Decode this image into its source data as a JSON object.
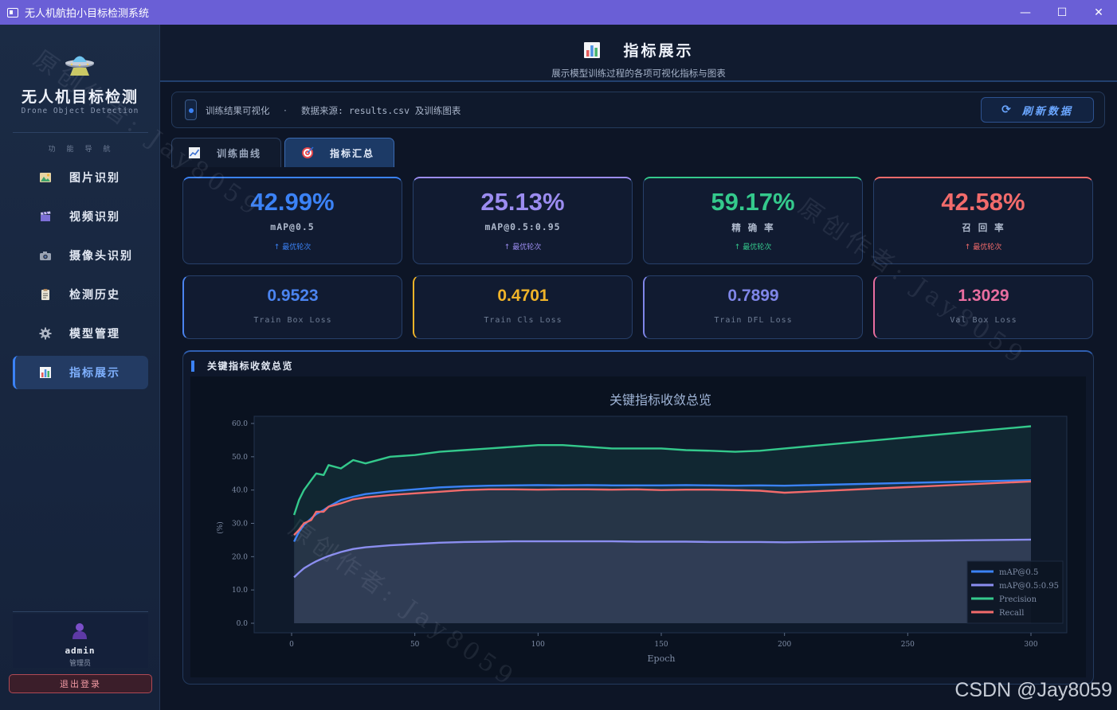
{
  "window": {
    "title": "无人机航拍小目标检测系统",
    "minimize": "—",
    "maximize": "☐",
    "close": "✕"
  },
  "sidebar": {
    "brand_title": "无人机目标检测",
    "brand_subtitle": "Drone Object Detection",
    "nav_heading": "功能导航",
    "items": [
      {
        "label": "图片识别",
        "icon": "image-icon"
      },
      {
        "label": "视频识别",
        "icon": "clapper-icon"
      },
      {
        "label": "摄像头识别",
        "icon": "camera-icon"
      },
      {
        "label": "检测历史",
        "icon": "clipboard-icon"
      },
      {
        "label": "模型管理",
        "icon": "gear-icon"
      },
      {
        "label": "指标展示",
        "icon": "bar-chart-icon",
        "active": true
      }
    ],
    "user": {
      "name": "admin",
      "role": "管理员"
    },
    "logout_label": "退出登录"
  },
  "header": {
    "title": "指标展示",
    "subtitle": "展示模型训练过程的各项可视化指标与图表"
  },
  "info_bar": {
    "label": "训练结果可视化",
    "separator": "·",
    "source": "数据来源: results.csv 及训练图表",
    "refresh_label": "刷新数据",
    "refresh_icon": "⟳"
  },
  "tabs": [
    {
      "label": "训练曲线",
      "icon": "line-chart-icon"
    },
    {
      "label": "指标汇总",
      "icon": "target-icon",
      "active": true
    }
  ],
  "metrics": [
    {
      "value": "42.99%",
      "label": "mAP@0.5",
      "note": "↑ 最优轮次",
      "color": "#3b82f6"
    },
    {
      "value": "25.13%",
      "label": "mAP@0.5:0.95",
      "note": "↑ 最优轮次",
      "color": "#9b8cf0"
    },
    {
      "value": "59.17%",
      "label": "精 确 率",
      "note": "↑ 最优轮次",
      "color": "#34c98c"
    },
    {
      "value": "42.58%",
      "label": "召 回 率",
      "note": "↑ 最优轮次",
      "color": "#f26b6b"
    }
  ],
  "losses": [
    {
      "value": "0.9523",
      "label": "Train Box Loss",
      "color": "#4b84f0"
    },
    {
      "value": "0.4701",
      "label": "Train Cls Loss",
      "color": "#f0b429"
    },
    {
      "value": "0.7899",
      "label": "Train DFL Loss",
      "color": "#7f86e8"
    },
    {
      "value": "1.3029",
      "label": "Val  Box Loss",
      "color": "#e96ea0"
    }
  ],
  "chart_panel": {
    "heading": "关键指标收敛总览"
  },
  "chart_data": {
    "type": "line",
    "title": "关键指标收敛总览",
    "xlabel": "Epoch",
    "ylabel": "(%)",
    "xlim": [
      0,
      300
    ],
    "ylim": [
      0,
      60
    ],
    "xticks": [
      0,
      50,
      100,
      150,
      200,
      250,
      300
    ],
    "yticks": [
      "0.0",
      "10.0",
      "20.0",
      "30.0",
      "40.0",
      "50.0",
      "60.0"
    ],
    "legend_position": "bottom-right",
    "grid": false,
    "series": [
      {
        "name": "mAP@0.5",
        "color": "#3b82f6",
        "x": [
          1,
          3,
          5,
          8,
          10,
          13,
          15,
          20,
          25,
          30,
          40,
          50,
          60,
          70,
          80,
          90,
          100,
          110,
          120,
          130,
          140,
          150,
          160,
          170,
          180,
          190,
          200,
          300
        ],
        "y": [
          24.5,
          27.5,
          29.5,
          31.5,
          32.8,
          34,
          35,
          37,
          38,
          38.8,
          39.6,
          40.2,
          40.8,
          41.1,
          41.3,
          41.4,
          41.5,
          41.4,
          41.5,
          41.4,
          41.4,
          41.4,
          41.5,
          41.4,
          41.3,
          41.4,
          41.3,
          42.99
        ]
      },
      {
        "name": "mAP@0.5:0.95",
        "color": "#8b8ef0",
        "x": [
          1,
          3,
          5,
          8,
          10,
          13,
          15,
          20,
          25,
          30,
          40,
          50,
          60,
          70,
          80,
          90,
          100,
          110,
          120,
          130,
          140,
          150,
          160,
          170,
          180,
          190,
          200,
          300
        ],
        "y": [
          13.8,
          15.2,
          16.5,
          17.8,
          18.6,
          19.6,
          20.2,
          21.4,
          22.3,
          22.8,
          23.4,
          23.8,
          24.2,
          24.4,
          24.5,
          24.6,
          24.6,
          24.6,
          24.6,
          24.6,
          24.5,
          24.5,
          24.5,
          24.4,
          24.4,
          24.4,
          24.3,
          25.13
        ]
      },
      {
        "name": "Precision",
        "color": "#34c98c",
        "x": [
          1,
          3,
          5,
          8,
          10,
          13,
          15,
          20,
          25,
          30,
          40,
          50,
          60,
          70,
          80,
          90,
          100,
          110,
          120,
          130,
          140,
          150,
          160,
          170,
          180,
          190,
          200,
          300
        ],
        "y": [
          32.5,
          37,
          40,
          43,
          45,
          44.5,
          47.5,
          46.5,
          49,
          48,
          50,
          50.5,
          51.5,
          52,
          52.5,
          53,
          53.5,
          53.5,
          53,
          52.5,
          52.5,
          52.5,
          52,
          51.8,
          51.5,
          51.8,
          52.5,
          59.17
        ]
      },
      {
        "name": "Recall",
        "color": "#f26b6b",
        "x": [
          1,
          3,
          5,
          8,
          10,
          13,
          15,
          20,
          25,
          30,
          40,
          50,
          60,
          70,
          80,
          90,
          100,
          110,
          120,
          130,
          140,
          150,
          160,
          170,
          180,
          190,
          200,
          300
        ],
        "y": [
          26.5,
          28,
          30,
          31,
          33.5,
          33.5,
          35,
          36,
          37.2,
          37.8,
          38.5,
          39,
          39.5,
          40,
          40.2,
          40.2,
          40.1,
          40.2,
          40.2,
          40.1,
          40.2,
          40,
          40.1,
          40.1,
          40,
          39.8,
          39.2,
          42.58
        ]
      }
    ]
  },
  "watermark": {
    "text": "原创作者: Jay8059",
    "site": "CSDN @Jay8059"
  }
}
